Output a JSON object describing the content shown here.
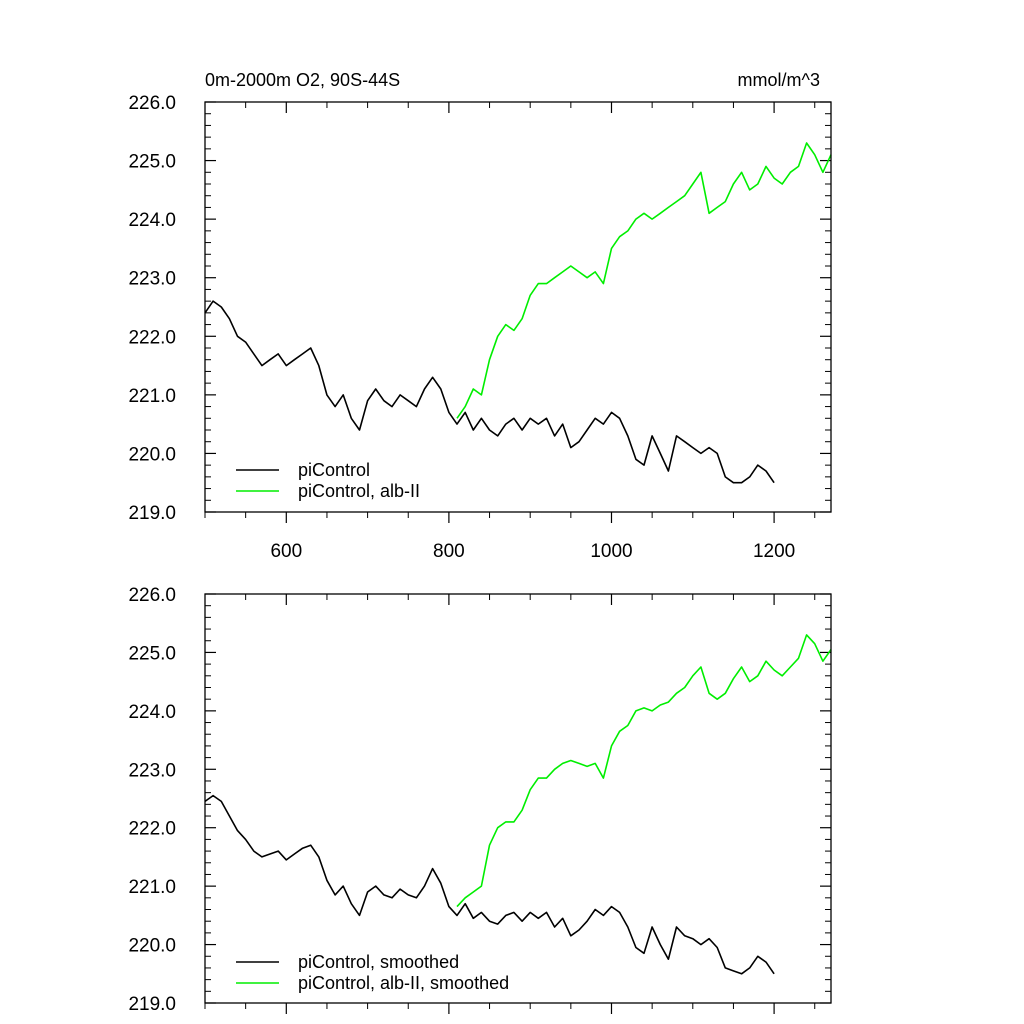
{
  "chart_data": [
    {
      "type": "line",
      "title": "0m-2000m O2, 90S-44S",
      "units": "mmol/m^3",
      "xlabel": "",
      "ylabel": "",
      "xlim": [
        500,
        1270
      ],
      "ylim": [
        219.0,
        226.0
      ],
      "xticks": [
        600,
        800,
        1000,
        1200
      ],
      "xtick_labels": [
        "600",
        "800",
        "1000",
        "1200"
      ],
      "yticks": [
        219.0,
        220.0,
        221.0,
        222.0,
        223.0,
        224.0,
        225.0,
        226.0
      ],
      "ytick_labels": [
        "219.0",
        "220.0",
        "221.0",
        "222.0",
        "223.0",
        "224.0",
        "225.0",
        "226.0"
      ],
      "grid": false,
      "legend_position": "bottom-left",
      "series": [
        {
          "name": "piControl",
          "color": "#000000",
          "x": [
            500,
            510,
            520,
            530,
            540,
            550,
            560,
            570,
            580,
            590,
            600,
            610,
            620,
            630,
            640,
            650,
            660,
            670,
            680,
            690,
            700,
            710,
            720,
            730,
            740,
            750,
            760,
            770,
            780,
            790,
            800,
            810,
            820,
            830,
            840,
            850,
            860,
            870,
            880,
            890,
            900,
            910,
            920,
            930,
            940,
            950,
            960,
            970,
            980,
            990,
            1000,
            1010,
            1020,
            1030,
            1040,
            1050,
            1060,
            1070,
            1080,
            1090,
            1100,
            1110,
            1120,
            1130,
            1140,
            1150,
            1160,
            1170,
            1180,
            1190,
            1200
          ],
          "y": [
            222.4,
            222.6,
            222.5,
            222.3,
            222.0,
            221.9,
            221.7,
            221.5,
            221.6,
            221.7,
            221.5,
            221.6,
            221.7,
            221.8,
            221.5,
            221.0,
            220.8,
            221.0,
            220.6,
            220.4,
            220.9,
            221.1,
            220.9,
            220.8,
            221.0,
            220.9,
            220.8,
            221.1,
            221.3,
            221.1,
            220.7,
            220.5,
            220.7,
            220.4,
            220.6,
            220.4,
            220.3,
            220.5,
            220.6,
            220.4,
            220.6,
            220.5,
            220.6,
            220.3,
            220.5,
            220.1,
            220.2,
            220.4,
            220.6,
            220.5,
            220.7,
            220.6,
            220.3,
            219.9,
            219.8,
            220.3,
            220.0,
            219.7,
            220.3,
            220.2,
            220.1,
            220.0,
            220.1,
            220.0,
            219.6,
            219.5,
            219.5,
            219.6,
            219.8,
            219.7,
            219.5
          ]
        },
        {
          "name": "piControl, alb-II",
          "color": "#00ee00",
          "x": [
            810,
            820,
            830,
            840,
            850,
            860,
            870,
            880,
            890,
            900,
            910,
            920,
            930,
            940,
            950,
            960,
            970,
            980,
            990,
            1000,
            1010,
            1020,
            1030,
            1040,
            1050,
            1060,
            1070,
            1080,
            1090,
            1100,
            1110,
            1120,
            1130,
            1140,
            1150,
            1160,
            1170,
            1180,
            1190,
            1200,
            1210,
            1220,
            1230,
            1240,
            1250,
            1260,
            1270
          ],
          "y": [
            220.6,
            220.8,
            221.1,
            221.0,
            221.6,
            222.0,
            222.2,
            222.1,
            222.3,
            222.7,
            222.9,
            222.9,
            223.0,
            223.1,
            223.2,
            223.1,
            223.0,
            223.1,
            222.9,
            223.5,
            223.7,
            223.8,
            224.0,
            224.1,
            224.0,
            224.1,
            224.2,
            224.3,
            224.4,
            224.6,
            224.8,
            224.1,
            224.2,
            224.3,
            224.6,
            224.8,
            224.5,
            224.6,
            224.9,
            224.7,
            224.6,
            224.8,
            224.9,
            225.3,
            225.1,
            224.8,
            225.1
          ]
        }
      ]
    },
    {
      "type": "line",
      "title": "",
      "xlabel": "",
      "ylabel": "",
      "xlim": [
        500,
        1270
      ],
      "ylim": [
        219.0,
        226.0
      ],
      "xticks": [
        600,
        800,
        1000,
        1200
      ],
      "xtick_labels": [
        "",
        "",
        "",
        ""
      ],
      "yticks": [
        219.0,
        220.0,
        221.0,
        222.0,
        223.0,
        224.0,
        225.0,
        226.0
      ],
      "ytick_labels": [
        "219.0",
        "220.0",
        "221.0",
        "222.0",
        "223.0",
        "224.0",
        "225.0",
        "226.0"
      ],
      "grid": false,
      "legend_position": "bottom-left",
      "series": [
        {
          "name": "piControl, smoothed",
          "color": "#000000",
          "x": [
            500,
            510,
            520,
            530,
            540,
            550,
            560,
            570,
            580,
            590,
            600,
            610,
            620,
            630,
            640,
            650,
            660,
            670,
            680,
            690,
            700,
            710,
            720,
            730,
            740,
            750,
            760,
            770,
            780,
            790,
            800,
            810,
            820,
            830,
            840,
            850,
            860,
            870,
            880,
            890,
            900,
            910,
            920,
            930,
            940,
            950,
            960,
            970,
            980,
            990,
            1000,
            1010,
            1020,
            1030,
            1040,
            1050,
            1060,
            1070,
            1080,
            1090,
            1100,
            1110,
            1120,
            1130,
            1140,
            1150,
            1160,
            1170,
            1180,
            1190,
            1200
          ],
          "y": [
            222.45,
            222.55,
            222.45,
            222.2,
            221.95,
            221.8,
            221.6,
            221.5,
            221.55,
            221.6,
            221.45,
            221.55,
            221.65,
            221.7,
            221.5,
            221.1,
            220.85,
            221.0,
            220.7,
            220.5,
            220.9,
            221.0,
            220.85,
            220.8,
            220.95,
            220.85,
            220.8,
            221.0,
            221.3,
            221.05,
            220.65,
            220.5,
            220.7,
            220.45,
            220.55,
            220.4,
            220.35,
            220.5,
            220.55,
            220.4,
            220.55,
            220.45,
            220.55,
            220.3,
            220.45,
            220.15,
            220.25,
            220.4,
            220.6,
            220.5,
            220.65,
            220.55,
            220.3,
            219.95,
            219.85,
            220.3,
            220.0,
            219.75,
            220.3,
            220.15,
            220.1,
            220.0,
            220.1,
            219.95,
            219.6,
            219.55,
            219.5,
            219.6,
            219.8,
            219.7,
            219.5
          ]
        },
        {
          "name": "piControl, alb-II, smoothed",
          "color": "#00ee00",
          "x": [
            810,
            820,
            830,
            840,
            850,
            860,
            870,
            880,
            890,
            900,
            910,
            920,
            930,
            940,
            950,
            960,
            970,
            980,
            990,
            1000,
            1010,
            1020,
            1030,
            1040,
            1050,
            1060,
            1070,
            1080,
            1090,
            1100,
            1110,
            1120,
            1130,
            1140,
            1150,
            1160,
            1170,
            1180,
            1190,
            1200,
            1210,
            1220,
            1230,
            1240,
            1250,
            1260,
            1270
          ],
          "y": [
            220.65,
            220.8,
            220.9,
            221.0,
            221.7,
            222.0,
            222.1,
            222.1,
            222.3,
            222.65,
            222.85,
            222.85,
            223.0,
            223.1,
            223.15,
            223.1,
            223.05,
            223.1,
            222.85,
            223.4,
            223.65,
            223.75,
            224.0,
            224.05,
            224.0,
            224.1,
            224.15,
            224.3,
            224.4,
            224.6,
            224.75,
            224.3,
            224.2,
            224.3,
            224.55,
            224.75,
            224.5,
            224.6,
            224.85,
            224.7,
            224.6,
            224.75,
            224.9,
            225.3,
            225.15,
            224.85,
            225.05
          ]
        }
      ]
    }
  ]
}
